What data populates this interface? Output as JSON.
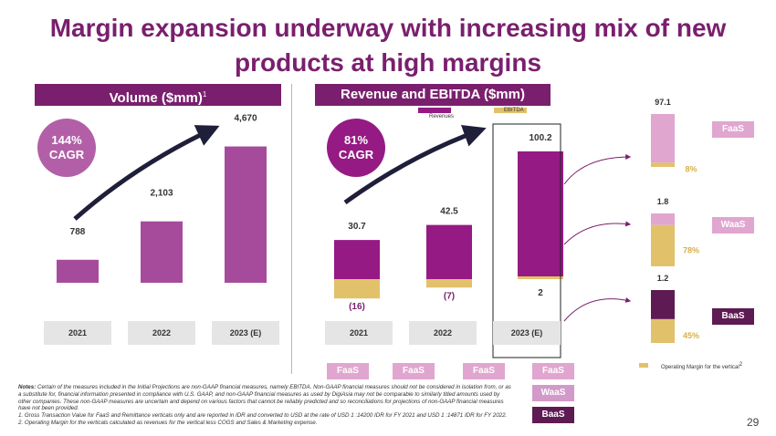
{
  "title_line1": "Margin expansion underway with increasing mix of new",
  "title_line2": "products at high margins",
  "colors": {
    "purple_dark": "#7a1f6e",
    "volume_bar": "#a64b9c",
    "revenue_bar": "#951a83",
    "ebitda_bar": "#e2c16b",
    "faas": "#e0a6cf",
    "waas": "#e2c16b",
    "baas": "#5e1a52"
  },
  "volume": {
    "header": "Volume ($mm)",
    "header_sup": "1",
    "cagr_value": "144%",
    "cagr_label": "CAGR"
  },
  "revenue": {
    "header": "Revenue and EBITDA ($mm)",
    "cagr_value": "81%",
    "cagr_label": "CAGR",
    "legend_revenues": "Revenues",
    "legend_ebitda": "EBITDA"
  },
  "chart_data": [
    {
      "type": "bar",
      "title": "Volume ($mm)",
      "categories": [
        "2021",
        "2022",
        "2023 (E)"
      ],
      "values": [
        788,
        2103,
        4670
      ],
      "value_labels": [
        "788",
        "2,103",
        "4,670"
      ],
      "ylim": [
        0,
        5000
      ]
    },
    {
      "type": "bar",
      "title": "Revenue and EBITDA ($mm)",
      "categories": [
        "2021",
        "2022",
        "2023 (E)"
      ],
      "series": [
        {
          "name": "Revenues",
          "values": [
            30.7,
            42.5,
            100.2
          ],
          "labels": [
            "30.7",
            "42.5",
            "100.2"
          ]
        },
        {
          "name": "EBITDA",
          "values": [
            -16,
            -7,
            2
          ],
          "labels": [
            "(16)",
            "(7)",
            "2"
          ]
        }
      ],
      "ylim": [
        -20,
        110
      ]
    },
    {
      "type": "bar",
      "title": "Operating Margin for the vertical",
      "categories": [
        "FaaS",
        "WaaS",
        "BaaS"
      ],
      "series": [
        {
          "name": "Revenue",
          "values": [
            97.1,
            1.8,
            1.2
          ],
          "labels": [
            "97.1",
            "1.8",
            "1.2"
          ]
        },
        {
          "name": "Operating Margin (%)",
          "values": [
            8,
            78,
            45
          ],
          "labels": [
            "8%",
            "78%",
            "45%"
          ]
        }
      ]
    }
  ],
  "mix_pills": {
    "row1": [
      "FaaS",
      "FaaS",
      "FaaS",
      "FaaS"
    ],
    "waas": "WaaS",
    "baas": "BaaS"
  },
  "verticals": {
    "faas": "FaaS",
    "waas": "WaaS",
    "baas": "BaaS"
  },
  "op_margin_legend": "Operating Margin for the vertical",
  "op_margin_sup": "2",
  "notes_label": "Notes:",
  "notes_body": "Certain of the measures included in the Initial Projections are non-GAAP financial measures, namely EBITDA. Non-GAAP financial measures should not be considered in isolation from, or as a substitute for, financial information presented in compliance with U.S. GAAP, and non-GAAP financial measures as used by DigiAsia may not be comparable to similarly titled amounts used by other companies. These non-GAAP measures are uncertain and depend on various factors that cannot be reliably predicted and so reconciliations for projections of non-GAAP financial measures have not been provided.",
  "notes_footnote": "1. Gross Transaction Value for FaaS and Remittance verticals only and are reported in IDR and converted to USD at the rate of USD 1 :14200 IDR for FY 2021 and USD 1 :14871 IDR for FY 2022. 2. Operating Margin for the verticals calculated as revenues for the vertical less COGS and Sales & Marketing expense.",
  "page_number": "29"
}
